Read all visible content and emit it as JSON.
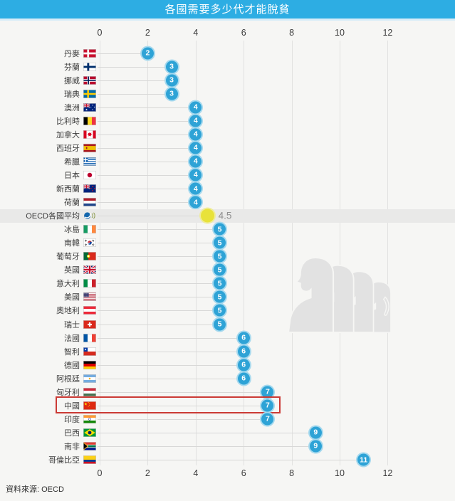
{
  "title": "各國需要多少代才能脫貧",
  "source": "資料來源: OECD",
  "colors": {
    "titlebar": "#2dade3",
    "dot": "#2ea3d6",
    "dot_ring": "#a6d9ee",
    "average_dot": "#e8e23a",
    "average_band": "#e9e9e8",
    "highlight_box": "#cb3a35",
    "background": "#f6f6f4"
  },
  "watermark": {
    "description": "four-generation-profile-silhouettes"
  },
  "chart_data": {
    "type": "bar",
    "variant": "lollipop-dot",
    "title": "各國需要多少代才能脫貧",
    "xlabel": "",
    "ylabel": "",
    "xlim": [
      0,
      12.8
    ],
    "x_ticks": [
      0,
      2,
      4,
      6,
      8,
      10,
      12
    ],
    "grid": true,
    "highlighted_category": "中國",
    "average_category": "OECD各國平均",
    "categories": [
      "丹麥",
      "芬蘭",
      "挪威",
      "瑞典",
      "澳洲",
      "比利時",
      "加拿大",
      "西班牙",
      "希臘",
      "日本",
      "新西蘭",
      "荷蘭",
      "OECD各國平均",
      "冰島",
      "南韓",
      "葡萄牙",
      "英國",
      "意大利",
      "美國",
      "奧地利",
      "瑞士",
      "法國",
      "智利",
      "德國",
      "阿根廷",
      "匈牙利",
      "中國",
      "印度",
      "巴西",
      "南非",
      "哥倫比亞"
    ],
    "values": [
      2,
      3,
      3,
      3,
      4,
      4,
      4,
      4,
      4,
      4,
      4,
      4,
      4.5,
      5,
      5,
      5,
      5,
      5,
      5,
      5,
      5,
      6,
      6,
      6,
      6,
      7,
      7,
      7,
      9,
      9,
      11
    ],
    "rows": [
      {
        "label": "丹麥",
        "flag": "denmark",
        "value": 2
      },
      {
        "label": "芬蘭",
        "flag": "finland",
        "value": 3
      },
      {
        "label": "挪威",
        "flag": "norway",
        "value": 3
      },
      {
        "label": "瑞典",
        "flag": "sweden",
        "value": 3
      },
      {
        "label": "澳洲",
        "flag": "australia",
        "value": 4
      },
      {
        "label": "比利時",
        "flag": "belgium",
        "value": 4
      },
      {
        "label": "加拿大",
        "flag": "canada",
        "value": 4
      },
      {
        "label": "西班牙",
        "flag": "spain",
        "value": 4
      },
      {
        "label": "希臘",
        "flag": "greece",
        "value": 4
      },
      {
        "label": "日本",
        "flag": "japan",
        "value": 4
      },
      {
        "label": "新西蘭",
        "flag": "new-zealand",
        "value": 4
      },
      {
        "label": "荷蘭",
        "flag": "netherlands",
        "value": 4
      },
      {
        "label": "OECD各國平均",
        "flag": "oecd",
        "value": 4.5,
        "kind": "average",
        "value_label": "4.5"
      },
      {
        "label": "冰島",
        "flag": "ireland",
        "value": 5
      },
      {
        "label": "南韓",
        "flag": "south-korea",
        "value": 5
      },
      {
        "label": "葡萄牙",
        "flag": "portugal",
        "value": 5
      },
      {
        "label": "英國",
        "flag": "uk",
        "value": 5
      },
      {
        "label": "意大利",
        "flag": "italy",
        "value": 5
      },
      {
        "label": "美國",
        "flag": "usa",
        "value": 5
      },
      {
        "label": "奧地利",
        "flag": "austria",
        "value": 5
      },
      {
        "label": "瑞士",
        "flag": "switzerland",
        "value": 5
      },
      {
        "label": "法國",
        "flag": "france",
        "value": 6
      },
      {
        "label": "智利",
        "flag": "chile",
        "value": 6
      },
      {
        "label": "德國",
        "flag": "germany",
        "value": 6
      },
      {
        "label": "阿根廷",
        "flag": "argentina",
        "value": 6
      },
      {
        "label": "匈牙利",
        "flag": "hungary",
        "value": 7
      },
      {
        "label": "中國",
        "flag": "china",
        "value": 7,
        "kind": "highlighted"
      },
      {
        "label": "印度",
        "flag": "india",
        "value": 7
      },
      {
        "label": "巴西",
        "flag": "brazil",
        "value": 9
      },
      {
        "label": "南非",
        "flag": "south-africa",
        "value": 9
      },
      {
        "label": "哥倫比亞",
        "flag": "colombia",
        "value": 11
      }
    ]
  }
}
